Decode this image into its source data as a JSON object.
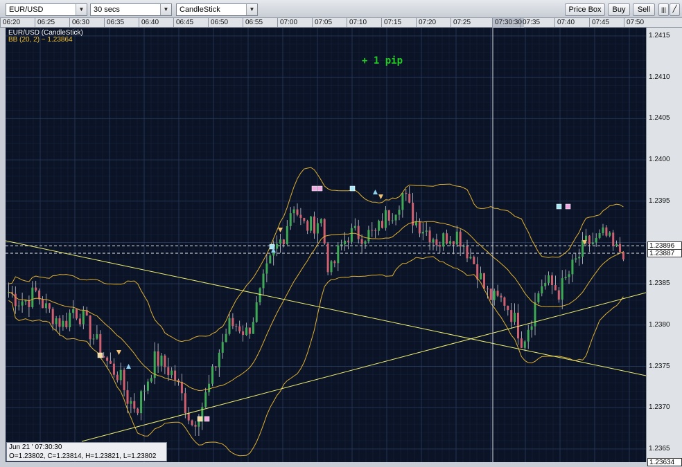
{
  "toolbar": {
    "symbol": "EUR/USD",
    "interval": "30 secs",
    "chart_type": "CandleStick",
    "price_box_label": "Price Box",
    "buy_label": "Buy",
    "sell_label": "Sell",
    "bars_icon": "bar-chart-icon",
    "draw_icon": "pencil-icon"
  },
  "chart_header": {
    "instrument": "EUR/USD (CandleStick)",
    "indicator": "BB (20, 2) ~ 1.23864",
    "annotation": "+ 1 pip"
  },
  "time_axis": {
    "labels": [
      "06:20",
      "06:25",
      "06:30",
      "06:35",
      "06:40",
      "06:45",
      "06:50",
      "06:55",
      "07:00",
      "07:05",
      "07:10",
      "07:15",
      "07:20",
      "07:25",
      "07:30:30",
      "07:35",
      "07:40",
      "07:45",
      "07:50"
    ],
    "current": "07:30:30"
  },
  "price_axis": {
    "labels": [
      "1.2415",
      "1.2410",
      "1.2405",
      "1.2400",
      "1.2395",
      "1.2385",
      "1.2380",
      "1.2375",
      "1.2370",
      "1.2365"
    ],
    "ask_tag": "1.23896",
    "bid_tag": "1.23887",
    "cursor_tag": "1.23634"
  },
  "info": {
    "date": "Jun 21 ' 07:30:30",
    "ohlc": "O=1.23802, C=1.23814, H=1.23821, L=1.23802"
  },
  "colors": {
    "background": "#0b1427",
    "grid": "#2a3a5c",
    "up": "#3faa55",
    "down": "#d06070",
    "band": "#e0b030",
    "trend": "#f0f070"
  },
  "chart_data": {
    "type": "candlestick",
    "x_start": "06:20",
    "x_end": "07:50",
    "ylim": [
      1.23634,
      1.2416
    ],
    "bollinger": "BB (20, 2)",
    "ohlc_last": {
      "open": 1.23802,
      "close": 1.23814,
      "high": 1.23821,
      "low": 1.23802
    },
    "close_path": [
      1.2384,
      1.2383,
      1.2383,
      1.2384,
      1.2382,
      1.2381,
      1.238,
      1.2382,
      1.2381,
      1.2379,
      1.2377,
      1.2375,
      1.2374,
      1.2371,
      1.237,
      1.2373,
      1.2376,
      1.2375,
      1.2374,
      1.2371,
      1.2368,
      1.237,
      1.2373,
      1.2377,
      1.238,
      1.238,
      1.2379,
      1.2382,
      1.2386,
      1.2389,
      1.2391,
      1.2395,
      1.2392,
      1.2392,
      1.2393,
      1.2386,
      1.2389,
      1.2391,
      1.2391,
      1.2391,
      1.2391,
      1.2393,
      1.2394,
      1.2396,
      1.2393,
      1.2392,
      1.2391,
      1.239,
      1.2391,
      1.2391,
      1.2389,
      1.2387,
      1.2384,
      1.2383,
      1.2383,
      1.2381,
      1.2378,
      1.2381,
      1.2385,
      1.2385,
      1.2384,
      1.2386,
      1.2388,
      1.239,
      1.239,
      1.2391,
      1.2389,
      1.2389
    ]
  }
}
